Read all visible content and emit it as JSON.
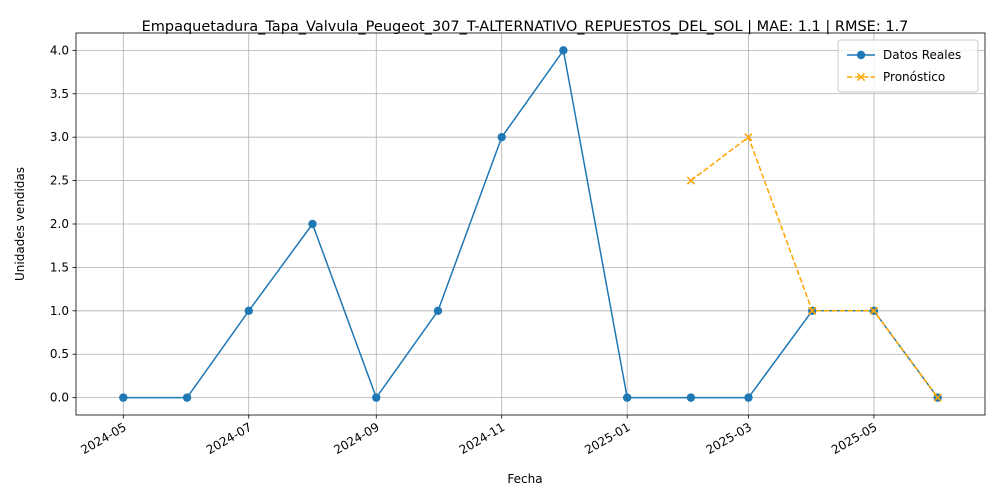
{
  "chart_data": {
    "type": "line",
    "title": "Empaquetadura_Tapa_Valvula_Peugeot_307_T-ALTERNATIVO_REPUESTOS_DEL_SOL | MAE: 1.1 | RMSE: 1.7",
    "xlabel": "Fecha",
    "ylabel": "Unidades vendidas",
    "ylim": [
      -0.2,
      4.2
    ],
    "xlim": [
      "2024-04-08",
      "2025-06-24"
    ],
    "yticks": [
      0.0,
      0.5,
      1.0,
      1.5,
      2.0,
      2.5,
      3.0,
      3.5,
      4.0
    ],
    "ytick_labels": [
      "0.0",
      "0.5",
      "1.0",
      "1.5",
      "2.0",
      "2.5",
      "3.0",
      "3.5",
      "4.0"
    ],
    "xticks": [
      "2024-05-01",
      "2024-07-01",
      "2024-09-01",
      "2024-11-01",
      "2025-01-01",
      "2025-03-01",
      "2025-05-01"
    ],
    "xtick_labels": [
      "2024-05",
      "2024-07",
      "2024-09",
      "2024-11",
      "2025-01",
      "2025-03",
      "2025-05"
    ],
    "grid": true,
    "legend_position": "top-right",
    "series": [
      {
        "name": "Datos Reales",
        "color": "#1f77b4",
        "line_style": "solid",
        "marker": "circle",
        "x": [
          "2024-05-01",
          "2024-06-01",
          "2024-07-01",
          "2024-08-01",
          "2024-09-01",
          "2024-10-01",
          "2024-11-01",
          "2024-12-01",
          "2025-01-01",
          "2025-02-01",
          "2025-03-01",
          "2025-04-01",
          "2025-05-01",
          "2025-06-01"
        ],
        "values": [
          0,
          0,
          1,
          2,
          0,
          1,
          3,
          4,
          0,
          0,
          0,
          1,
          1,
          0
        ]
      },
      {
        "name": "Pronóstico",
        "color": "#ffa500",
        "line_style": "dashed",
        "marker": "x",
        "x": [
          "2025-02-01",
          "2025-03-01",
          "2025-04-01",
          "2025-05-01",
          "2025-06-01"
        ],
        "values": [
          2.5,
          3.0,
          1.0,
          1.0,
          0.0
        ]
      }
    ]
  }
}
